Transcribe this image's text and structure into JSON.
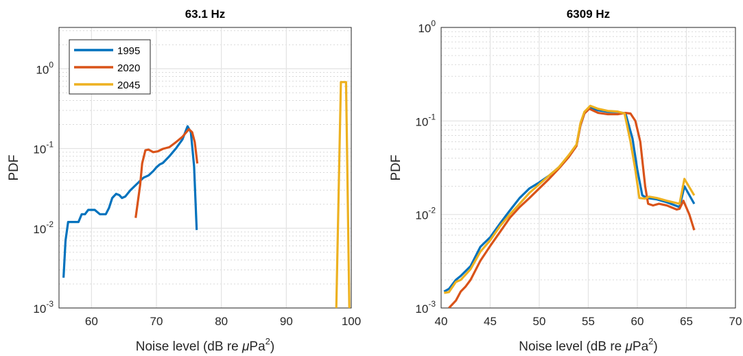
{
  "chart_data": [
    {
      "type": "line",
      "title": "63.1 Hz",
      "xlabel": "Noise level (dB re μPa²)",
      "xlabel_parts": {
        "main": "Noise level (dB re ",
        "mu": "μ",
        "unit": "Pa",
        "sup": "2",
        "close": ")"
      },
      "ylabel": "PDF",
      "xlim": [
        55,
        100
      ],
      "ylim": [
        0.001,
        3.3
      ],
      "yscale": "log",
      "xticks": [
        60,
        70,
        80,
        90,
        100
      ],
      "yticks": [
        0.001,
        0.01,
        0.1,
        1
      ],
      "ytick_labels": [
        {
          "base": "10",
          "exp": "-3"
        },
        {
          "base": "10",
          "exp": "-2"
        },
        {
          "base": "10",
          "exp": "-1"
        },
        {
          "base": "10",
          "exp": "0"
        }
      ],
      "grid": true,
      "legend": "top-left",
      "series": [
        {
          "name": "1995",
          "color": "#0072BD",
          "points": [
            [
              55.7,
              0.0024
            ],
            [
              56,
              0.007
            ],
            [
              56.4,
              0.012
            ],
            [
              57.5,
              0.012
            ],
            [
              58,
              0.012
            ],
            [
              58.5,
              0.015
            ],
            [
              59,
              0.015
            ],
            [
              59.5,
              0.017
            ],
            [
              60.5,
              0.017
            ],
            [
              61.3,
              0.015
            ],
            [
              62.2,
              0.015
            ],
            [
              62.7,
              0.018
            ],
            [
              63.2,
              0.024
            ],
            [
              63.8,
              0.027
            ],
            [
              64.3,
              0.026
            ],
            [
              64.7,
              0.024
            ],
            [
              65.2,
              0.025
            ],
            [
              66,
              0.03
            ],
            [
              67,
              0.036
            ],
            [
              68,
              0.043
            ],
            [
              68.8,
              0.046
            ],
            [
              69.5,
              0.052
            ],
            [
              70,
              0.058
            ],
            [
              70.5,
              0.063
            ],
            [
              71,
              0.066
            ],
            [
              72,
              0.08
            ],
            [
              73,
              0.1
            ],
            [
              74,
              0.13
            ],
            [
              74.8,
              0.19
            ],
            [
              75.3,
              0.16
            ],
            [
              75.8,
              0.06
            ],
            [
              76.2,
              0.0095
            ]
          ]
        },
        {
          "name": "2020",
          "color": "#D95319",
          "points": [
            [
              66.8,
              0.0135
            ],
            [
              67.5,
              0.035
            ],
            [
              67.8,
              0.065
            ],
            [
              68.3,
              0.095
            ],
            [
              68.8,
              0.097
            ],
            [
              69.5,
              0.09
            ],
            [
              70.2,
              0.092
            ],
            [
              71,
              0.099
            ],
            [
              72,
              0.104
            ],
            [
              73,
              0.12
            ],
            [
              74,
              0.14
            ],
            [
              75,
              0.175
            ],
            [
              75.5,
              0.16
            ],
            [
              75.9,
              0.12
            ],
            [
              76.3,
              0.065
            ]
          ]
        },
        {
          "name": "2045",
          "color": "#EDB120",
          "points": [
            [
              97.7,
              0.001
            ],
            [
              98.4,
              0.68
            ],
            [
              99.2,
              0.68
            ],
            [
              99.7,
              0.001
            ]
          ]
        }
      ]
    },
    {
      "type": "line",
      "title": "6309 Hz",
      "xlabel": "Noise level (dB re μPa²)",
      "xlabel_parts": {
        "main": "Noise level (dB re ",
        "mu": "μ",
        "unit": "Pa",
        "sup": "2",
        "close": ")"
      },
      "ylabel": "PDF",
      "xlim": [
        40,
        70
      ],
      "ylim": [
        0.001,
        1
      ],
      "yscale": "log",
      "xticks": [
        40,
        45,
        50,
        55,
        60,
        65,
        70
      ],
      "yticks": [
        0.001,
        0.01,
        0.1,
        1
      ],
      "ytick_labels": [
        {
          "base": "10",
          "exp": "-3"
        },
        {
          "base": "10",
          "exp": "-2"
        },
        {
          "base": "10",
          "exp": "-1"
        },
        {
          "base": "10",
          "exp": "0"
        }
      ],
      "grid": true,
      "series": [
        {
          "name": "1995",
          "color": "#0072BD",
          "points": [
            [
              40.3,
              0.0015
            ],
            [
              40.8,
              0.0016
            ],
            [
              41.5,
              0.002
            ],
            [
              42,
              0.0022
            ],
            [
              43,
              0.0028
            ],
            [
              44,
              0.0045
            ],
            [
              45,
              0.0057
            ],
            [
              46,
              0.008
            ],
            [
              47,
              0.011
            ],
            [
              48,
              0.015
            ],
            [
              49,
              0.019
            ],
            [
              50,
              0.022
            ],
            [
              51,
              0.026
            ],
            [
              52,
              0.032
            ],
            [
              53,
              0.042
            ],
            [
              53.8,
              0.055
            ],
            [
              54.2,
              0.09
            ],
            [
              54.6,
              0.12
            ],
            [
              55.1,
              0.14
            ],
            [
              56,
              0.13
            ],
            [
              57,
              0.125
            ],
            [
              58,
              0.125
            ],
            [
              58.8,
              0.12
            ],
            [
              59.5,
              0.065
            ],
            [
              60,
              0.03
            ],
            [
              60.5,
              0.016
            ],
            [
              61,
              0.015
            ],
            [
              62,
              0.0145
            ],
            [
              63,
              0.0135
            ],
            [
              64.3,
              0.012
            ],
            [
              64.8,
              0.02
            ],
            [
              65.8,
              0.013
            ]
          ]
        },
        {
          "name": "2020",
          "color": "#D95319",
          "points": [
            [
              40.8,
              0.001
            ],
            [
              41.5,
              0.0012
            ],
            [
              42,
              0.0015
            ],
            [
              42.5,
              0.0017
            ],
            [
              43,
              0.002
            ],
            [
              44,
              0.0032
            ],
            [
              45,
              0.0046
            ],
            [
              46,
              0.0065
            ],
            [
              47,
              0.0092
            ],
            [
              48,
              0.012
            ],
            [
              49,
              0.015
            ],
            [
              50,
              0.019
            ],
            [
              51,
              0.024
            ],
            [
              52,
              0.031
            ],
            [
              53,
              0.041
            ],
            [
              53.8,
              0.054
            ],
            [
              54.2,
              0.09
            ],
            [
              54.6,
              0.12
            ],
            [
              55.1,
              0.135
            ],
            [
              56,
              0.122
            ],
            [
              57,
              0.118
            ],
            [
              58,
              0.118
            ],
            [
              58.8,
              0.122
            ],
            [
              59.3,
              0.12
            ],
            [
              59.8,
              0.1
            ],
            [
              60.3,
              0.06
            ],
            [
              60.8,
              0.02
            ],
            [
              61.1,
              0.013
            ],
            [
              61.6,
              0.0125
            ],
            [
              62.2,
              0.013
            ],
            [
              63,
              0.0125
            ],
            [
              64,
              0.0113
            ],
            [
              64.3,
              0.0115
            ],
            [
              64.7,
              0.014
            ],
            [
              65.3,
              0.01
            ],
            [
              65.8,
              0.0068
            ]
          ]
        },
        {
          "name": "2045",
          "color": "#EDB120",
          "points": [
            [
              40.3,
              0.00145
            ],
            [
              40.8,
              0.00148
            ],
            [
              41.5,
              0.0019
            ],
            [
              42,
              0.002
            ],
            [
              43,
              0.0026
            ],
            [
              44,
              0.004
            ],
            [
              45,
              0.0053
            ],
            [
              46,
              0.0075
            ],
            [
              47,
              0.01
            ],
            [
              48,
              0.013
            ],
            [
              49,
              0.017
            ],
            [
              50,
              0.021
            ],
            [
              51,
              0.026
            ],
            [
              52,
              0.032
            ],
            [
              53,
              0.043
            ],
            [
              53.8,
              0.056
            ],
            [
              54.2,
              0.095
            ],
            [
              54.6,
              0.125
            ],
            [
              55.2,
              0.145
            ],
            [
              56,
              0.135
            ],
            [
              57,
              0.128
            ],
            [
              58,
              0.126
            ],
            [
              58.7,
              0.12
            ],
            [
              59.3,
              0.06
            ],
            [
              59.8,
              0.03
            ],
            [
              60.2,
              0.015
            ],
            [
              60.8,
              0.0148
            ],
            [
              61.2,
              0.0155
            ],
            [
              62,
              0.015
            ],
            [
              63,
              0.014
            ],
            [
              64.3,
              0.013
            ],
            [
              64.8,
              0.024
            ],
            [
              65.8,
              0.016
            ]
          ]
        }
      ]
    }
  ]
}
